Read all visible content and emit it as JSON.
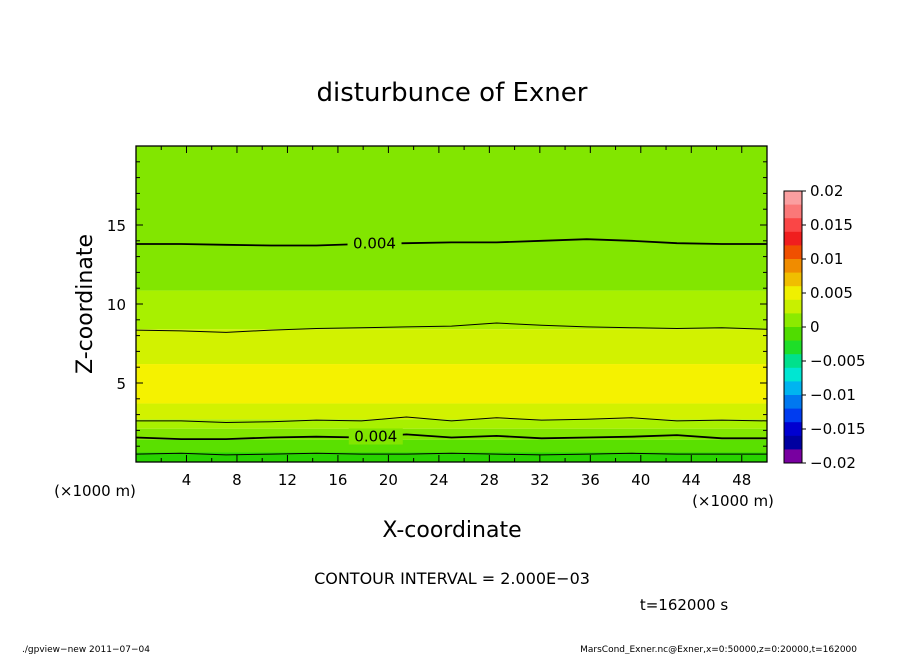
{
  "chart_data": {
    "type": "heatmap",
    "title": "disturbunce of Exner",
    "xlabel": "X-coordinate",
    "ylabel": "Z-coordinate",
    "x_unit": "(×1000 m)",
    "y_unit": "(×1000 m)",
    "xlim": [
      0,
      50
    ],
    "ylim": [
      0,
      20
    ],
    "x_ticks": [
      "4",
      "8",
      "12",
      "16",
      "20",
      "24",
      "28",
      "32",
      "36",
      "40",
      "44",
      "48"
    ],
    "y_ticks": [
      "5",
      "10",
      "15"
    ],
    "bands": [
      {
        "z_top": 20.0,
        "z_bottom": 10.85,
        "value": 0.003,
        "color": "#82e600"
      },
      {
        "z_top": 10.85,
        "z_bottom": 8.4,
        "value": 0.005,
        "color": "#a8f000"
      },
      {
        "z_top": 8.4,
        "z_bottom": 6.2,
        "value": 0.006,
        "color": "#d2f200"
      },
      {
        "z_top": 6.2,
        "z_bottom": 3.7,
        "value": 0.007,
        "color": "#f5f200"
      },
      {
        "z_top": 3.7,
        "z_bottom": 2.7,
        "value": 0.006,
        "color": "#d2f200"
      },
      {
        "z_top": 2.7,
        "z_bottom": 2.1,
        "value": 0.005,
        "color": "#a8f000"
      },
      {
        "z_top": 2.1,
        "z_bottom": 1.4,
        "value": 0.004,
        "color": "#82e600"
      },
      {
        "z_top": 1.4,
        "z_bottom": 0.6,
        "value": 0.003,
        "color": "#5ae000"
      },
      {
        "z_top": 0.6,
        "z_bottom": 0.0,
        "value": 0.002,
        "color": "#28d400"
      }
    ],
    "contours": [
      {
        "level": 0.004,
        "label": "0.004",
        "label_x": 18.9,
        "thick": true,
        "z": [
          13.8,
          13.8,
          13.75,
          13.7,
          13.7,
          13.8,
          13.85,
          13.9,
          13.9,
          14.0,
          14.1,
          14.0,
          13.85,
          13.8,
          13.8
        ]
      },
      {
        "level": 0.006,
        "label": "",
        "thick": false,
        "z": [
          8.35,
          8.3,
          8.2,
          8.35,
          8.45,
          8.5,
          8.55,
          8.6,
          8.8,
          8.65,
          8.55,
          8.5,
          8.45,
          8.5,
          8.4
        ]
      },
      {
        "level": 0.006,
        "label": "",
        "thick": false,
        "z": [
          2.6,
          2.6,
          2.5,
          2.55,
          2.65,
          2.6,
          2.85,
          2.6,
          2.8,
          2.65,
          2.7,
          2.8,
          2.6,
          2.65,
          2.6
        ]
      },
      {
        "level": 0.004,
        "label": "0.004",
        "label_x": 19.0,
        "thick": true,
        "z": [
          1.55,
          1.45,
          1.45,
          1.55,
          1.6,
          1.55,
          1.75,
          1.55,
          1.65,
          1.5,
          1.55,
          1.6,
          1.7,
          1.5,
          1.5
        ]
      },
      {
        "level": 0.002,
        "label": "",
        "thick": false,
        "z": [
          0.5,
          0.55,
          0.45,
          0.5,
          0.55,
          0.5,
          0.5,
          0.55,
          0.5,
          0.45,
          0.5,
          0.55,
          0.5,
          0.5,
          0.5
        ]
      }
    ],
    "colorbar": {
      "tick_labels": [
        "0.02",
        "0.015",
        "0.01",
        "0.005",
        "0",
        "−0.005",
        "−0.01",
        "−0.015",
        "−0.02"
      ],
      "colors": [
        "#fa9fa0",
        "#fa7878",
        "#fa4646",
        "#f01e1e",
        "#f05000",
        "#f08c00",
        "#f0be00",
        "#f0f000",
        "#c8f000",
        "#8cea00",
        "#50dc00",
        "#1ede28",
        "#00e08c",
        "#00e6d2",
        "#00b4f0",
        "#0078f0",
        "#003cf0",
        "#0000d0",
        "#0000a0",
        "#7800a0"
      ]
    },
    "contour_interval": "CONTOUR INTERVAL = 2.000E−03",
    "time_label": "t=162000 s"
  },
  "footer": {
    "left": "./gpview−new   2011−07−04",
    "right": "MarsCond_Exner.nc@Exner,x=0:50000,z=0:20000,t=162000"
  }
}
